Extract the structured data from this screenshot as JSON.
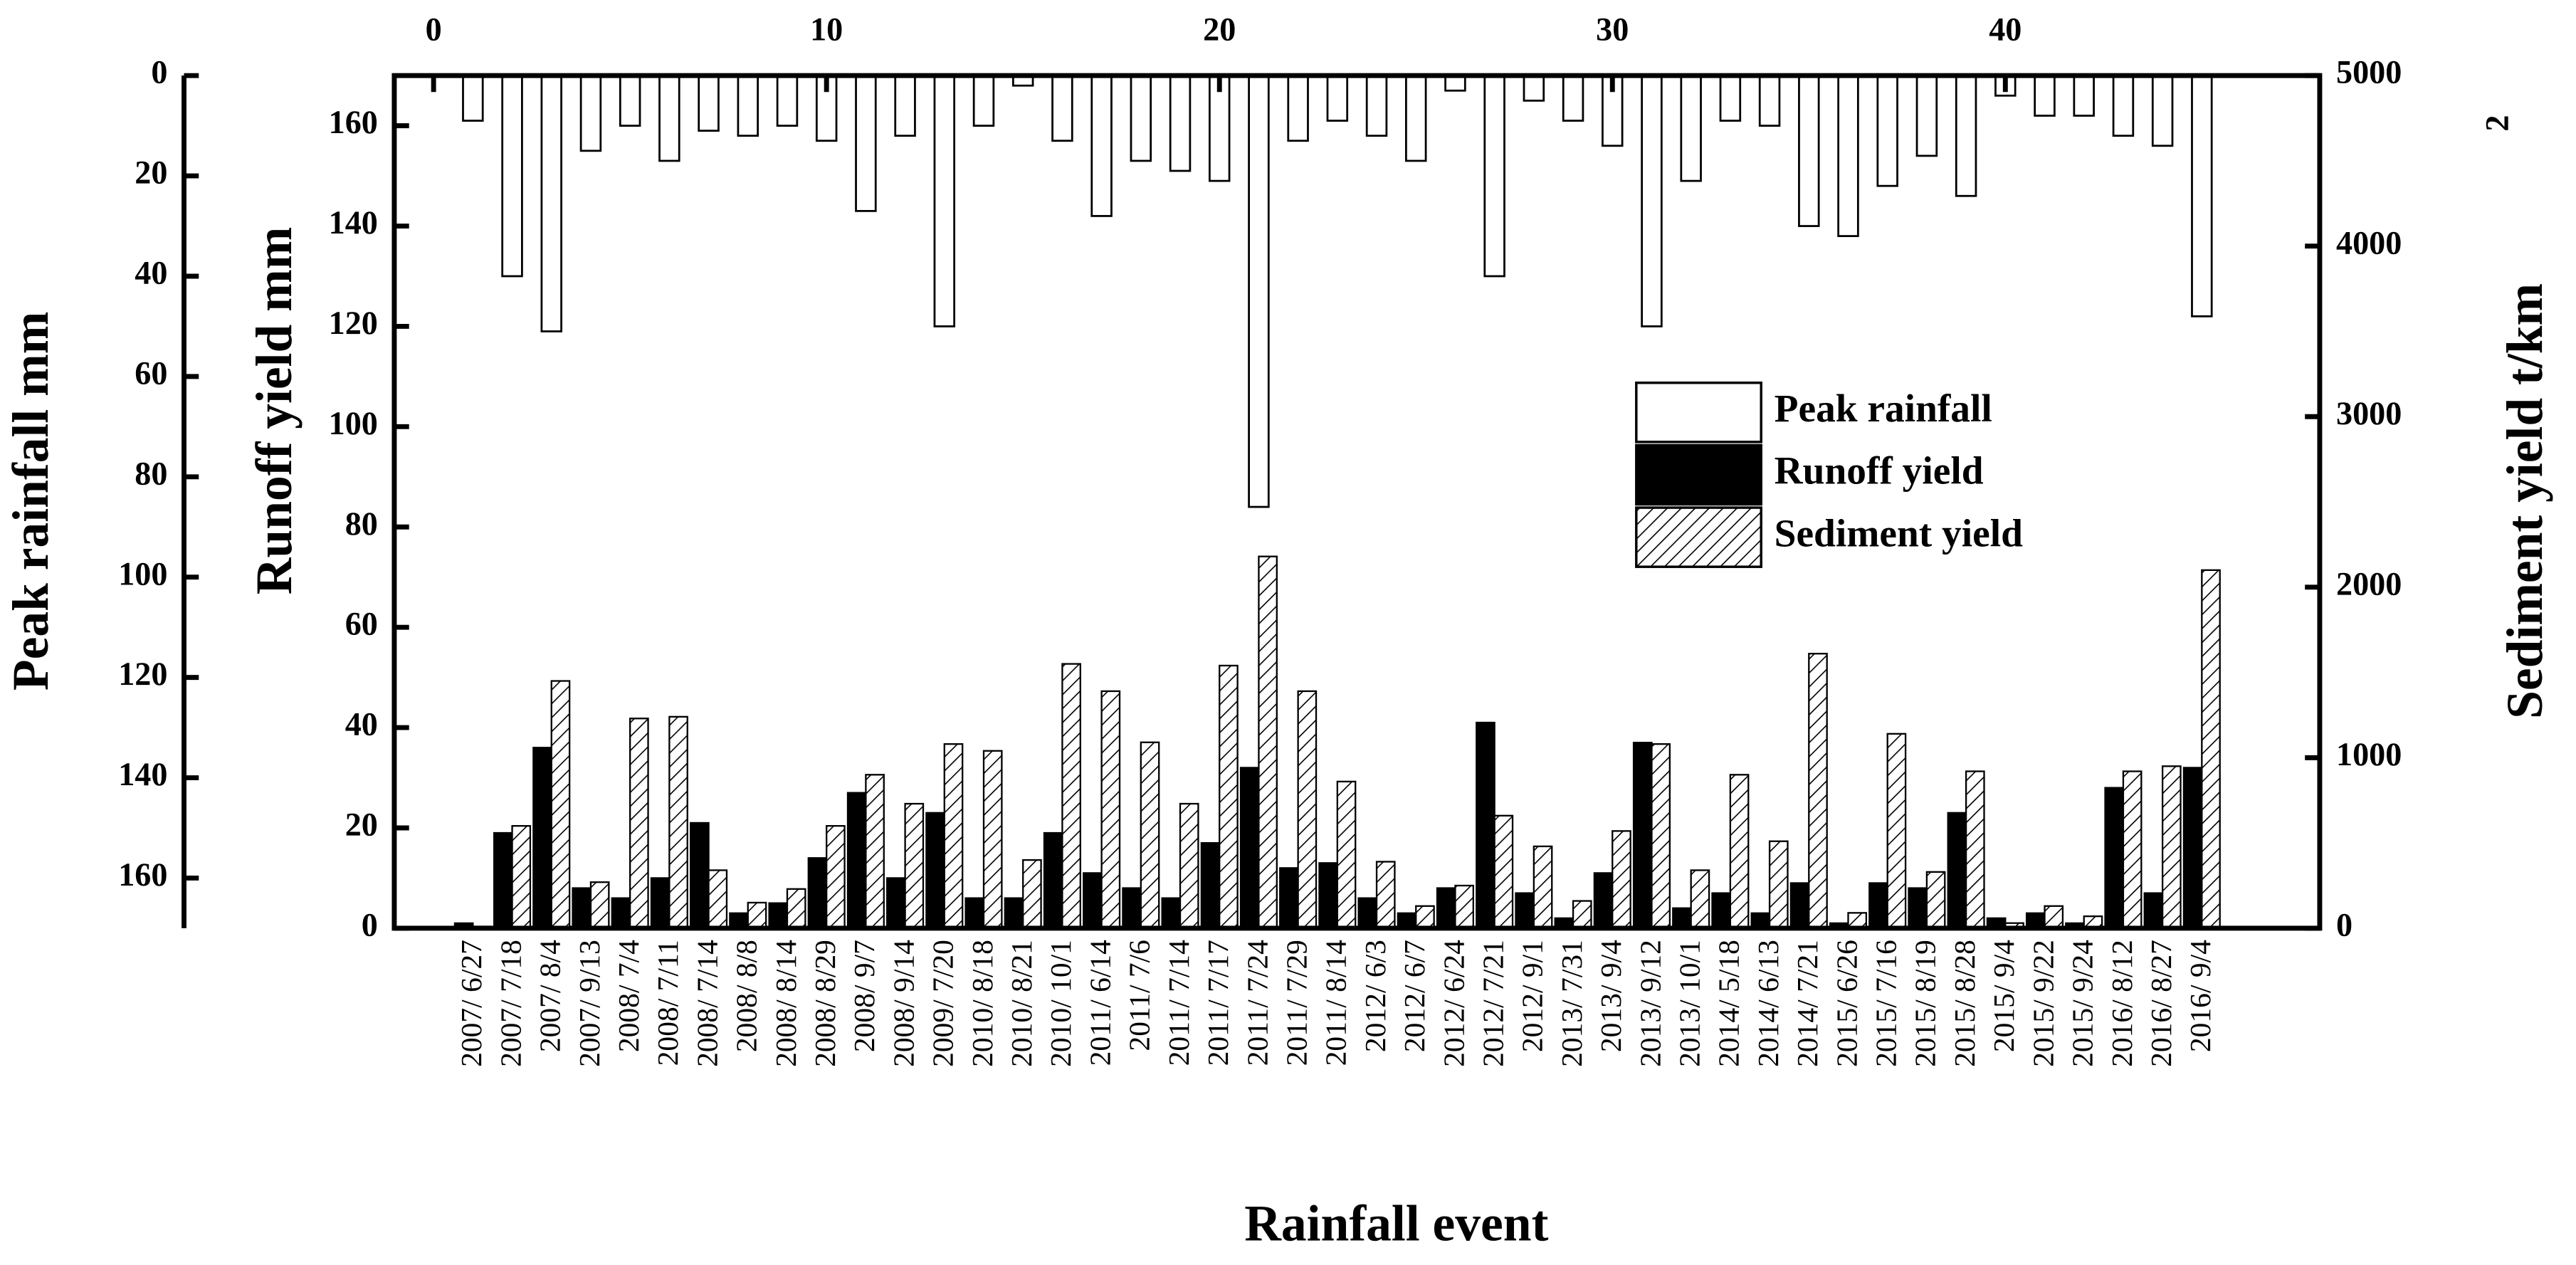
{
  "chart_data": {
    "type": "bar",
    "xlabel": "Rainfall event",
    "ylabel": "Runoff yield mm",
    "y2label": "Sediment yield t/km",
    "y2label_superscript": "2",
    "y3label": "Peak rainfall mm",
    "xlim": [
      -1,
      48
    ],
    "xticks": [
      0,
      10,
      20,
      30,
      40
    ],
    "ylim": [
      0,
      170
    ],
    "yticks": [
      0,
      20,
      40,
      60,
      80,
      100,
      120,
      140,
      160
    ],
    "y2lim": [
      0,
      5000
    ],
    "y2ticks": [
      0,
      1000,
      2000,
      3000,
      4000,
      5000
    ],
    "y3lim": [
      0,
      170
    ],
    "y3ticks": [
      0,
      20,
      40,
      60,
      80,
      100,
      120,
      140,
      160
    ],
    "y3_inverted": true,
    "legend_position": "right",
    "categories": [
      "2007/ 6/27",
      "2007/ 7/18",
      "2007/ 8/4",
      "2007/ 9/13",
      "2008/ 7/4",
      "2008/ 7/11",
      "2008/ 7/14",
      "2008/ 8/8",
      "2008/ 8/14",
      "2008/ 8/29",
      "2008/ 9/7",
      "2008/ 9/14",
      "2009/ 7/20",
      "2010/ 8/18",
      "2010/ 8/21",
      "2010/ 10/1",
      "2011/ 6/14",
      "2011/ 7/6",
      "2011/ 7/14",
      "2011/ 7/17",
      "2011/ 7/24",
      "2011/ 7/29",
      "2011/ 8/14",
      "2012/ 6/3",
      "2012/ 6/7",
      "2012/ 6/24",
      "2012/ 7/21",
      "2012/ 9/1",
      "2013/ 7/31",
      "2013/ 9/4",
      "2013/ 9/12",
      "2013/ 10/1",
      "2014/ 5/18",
      "2014/ 6/13",
      "2014/ 7/21",
      "2015/ 6/26",
      "2015/ 7/16",
      "2015/ 8/19",
      "2015/ 8/28",
      "2015/ 9/4",
      "2015/ 9/22",
      "2015/ 9/24",
      "2016/ 8/12",
      "2016/ 8/27",
      "2016/ 9/4"
    ],
    "x": [
      1,
      2,
      3,
      4,
      5,
      6,
      7,
      8,
      9,
      10,
      11,
      12,
      13,
      14,
      15,
      16,
      17,
      18,
      19,
      20,
      21,
      22,
      23,
      24,
      25,
      26,
      27,
      28,
      29,
      30,
      31,
      32,
      33,
      34,
      35,
      36,
      37,
      38,
      39,
      40,
      41,
      42,
      43,
      44,
      45
    ],
    "series": [
      {
        "name": "Peak rainfall",
        "color": "#ffffff",
        "axis": "y3",
        "values": [
          9,
          40,
          51,
          15,
          10,
          17,
          11,
          12,
          10,
          13,
          27,
          12,
          50,
          10,
          2,
          13,
          28,
          17,
          19,
          21,
          86,
          13,
          9,
          12,
          17,
          3,
          40,
          5,
          9,
          14,
          50,
          21,
          9,
          10,
          30,
          32,
          22,
          16,
          24,
          4,
          8,
          8,
          12,
          14,
          48
        ]
      },
      {
        "name": "Runoff yield",
        "color": "#000000",
        "axis": "y",
        "values": [
          1,
          19,
          36,
          8,
          6,
          10,
          21,
          3,
          5,
          14,
          27,
          10,
          23,
          6,
          6,
          19,
          11,
          8,
          6,
          17,
          32,
          12,
          13,
          6,
          3,
          8,
          41,
          7,
          2,
          11,
          37,
          4,
          7,
          3,
          9,
          1,
          9,
          8,
          23,
          2,
          3,
          1,
          28,
          7,
          32
        ]
      },
      {
        "name": "Sediment yield",
        "color": "hatch",
        "axis": "y2",
        "values": [
          10,
          600,
          1450,
          270,
          1230,
          1240,
          340,
          150,
          230,
          600,
          900,
          730,
          1080,
          1040,
          400,
          1550,
          1390,
          1090,
          730,
          1540,
          2180,
          1390,
          860,
          390,
          130,
          250,
          660,
          480,
          160,
          570,
          1080,
          340,
          900,
          510,
          1610,
          90,
          1140,
          330,
          920,
          30,
          130,
          70,
          920,
          950,
          2100
        ]
      }
    ]
  }
}
